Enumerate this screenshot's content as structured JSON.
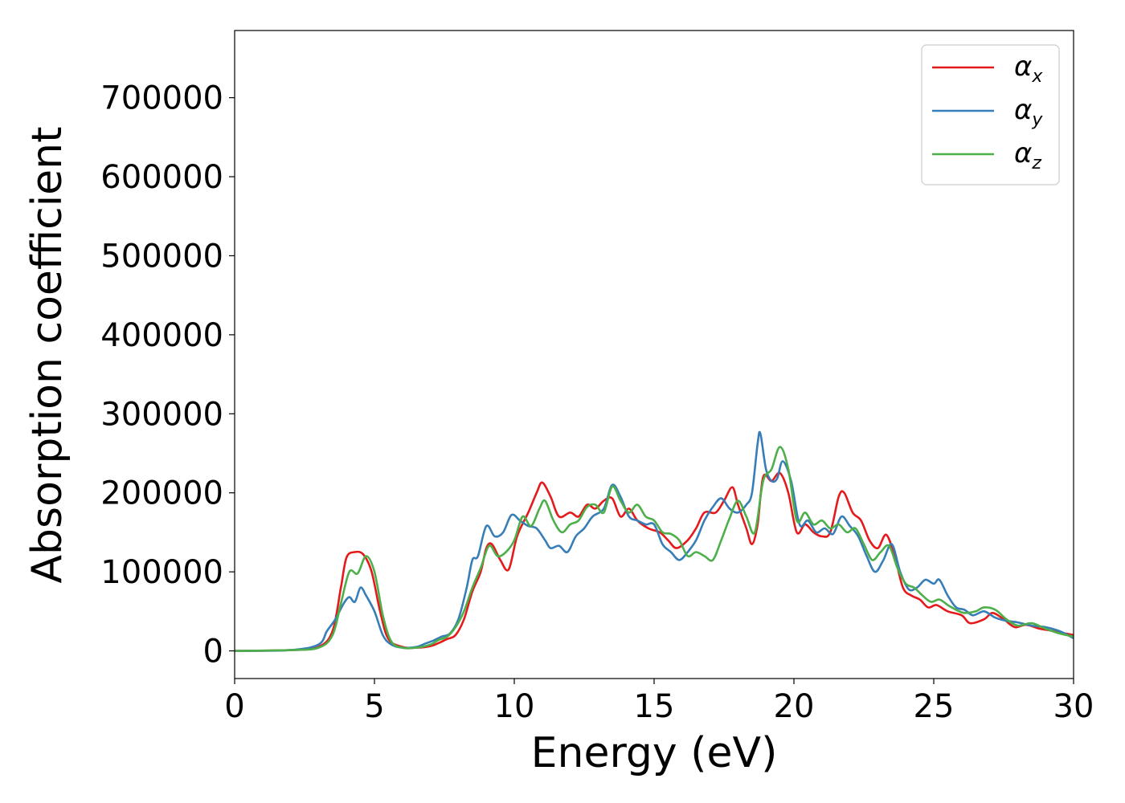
{
  "chart_data": {
    "type": "line",
    "xlabel": "Energy (eV)",
    "ylabel": "Absorption coefficient",
    "xlim": [
      0,
      30
    ],
    "ylim": [
      -35000,
      785000
    ],
    "xticks": [
      0,
      5,
      10,
      15,
      20,
      25,
      30
    ],
    "xtick_labels": [
      "0",
      "5",
      "10",
      "15",
      "20",
      "25",
      "30"
    ],
    "yticks": [
      0,
      100000,
      200000,
      300000,
      400000,
      500000,
      600000,
      700000
    ],
    "ytick_labels": [
      "0",
      "100000",
      "200000",
      "300000",
      "400000",
      "500000",
      "600000",
      "700000"
    ],
    "grid": false,
    "legend_position": "top-right",
    "series": [
      {
        "name": "α",
        "subscript": "x",
        "color": "#e41a1c",
        "points": [
          [
            0,
            0
          ],
          [
            2,
            1000
          ],
          [
            3,
            5000
          ],
          [
            3.5,
            25000
          ],
          [
            3.8,
            80000
          ],
          [
            4.0,
            118000
          ],
          [
            4.3,
            125000
          ],
          [
            4.6,
            122000
          ],
          [
            4.9,
            100000
          ],
          [
            5.2,
            50000
          ],
          [
            5.5,
            15000
          ],
          [
            6.0,
            5000
          ],
          [
            6.5,
            4000
          ],
          [
            7.0,
            6000
          ],
          [
            7.3,
            10000
          ],
          [
            7.6,
            15000
          ],
          [
            7.9,
            20000
          ],
          [
            8.2,
            40000
          ],
          [
            8.5,
            75000
          ],
          [
            8.8,
            100000
          ],
          [
            9.0,
            130000
          ],
          [
            9.2,
            135000
          ],
          [
            9.5,
            115000
          ],
          [
            9.8,
            103000
          ],
          [
            10.1,
            145000
          ],
          [
            10.5,
            175000
          ],
          [
            10.8,
            200000
          ],
          [
            11.0,
            213000
          ],
          [
            11.3,
            195000
          ],
          [
            11.6,
            170000
          ],
          [
            12.0,
            175000
          ],
          [
            12.3,
            170000
          ],
          [
            12.6,
            185000
          ],
          [
            12.9,
            180000
          ],
          [
            13.2,
            190000
          ],
          [
            13.5,
            193000
          ],
          [
            13.8,
            170000
          ],
          [
            14.1,
            180000
          ],
          [
            14.4,
            165000
          ],
          [
            14.8,
            155000
          ],
          [
            15.2,
            150000
          ],
          [
            15.5,
            140000
          ],
          [
            15.8,
            130000
          ],
          [
            16.2,
            140000
          ],
          [
            16.5,
            155000
          ],
          [
            16.8,
            175000
          ],
          [
            17.2,
            175000
          ],
          [
            17.5,
            190000
          ],
          [
            17.8,
            207000
          ],
          [
            18.0,
            185000
          ],
          [
            18.3,
            155000
          ],
          [
            18.5,
            135000
          ],
          [
            18.7,
            160000
          ],
          [
            18.9,
            220000
          ],
          [
            19.2,
            215000
          ],
          [
            19.5,
            225000
          ],
          [
            19.8,
            200000
          ],
          [
            20.1,
            150000
          ],
          [
            20.4,
            160000
          ],
          [
            20.7,
            150000
          ],
          [
            21.0,
            145000
          ],
          [
            21.3,
            150000
          ],
          [
            21.6,
            195000
          ],
          [
            21.8,
            200000
          ],
          [
            22.1,
            175000
          ],
          [
            22.4,
            165000
          ],
          [
            22.7,
            140000
          ],
          [
            23.0,
            130000
          ],
          [
            23.3,
            147000
          ],
          [
            23.6,
            120000
          ],
          [
            23.9,
            80000
          ],
          [
            24.2,
            70000
          ],
          [
            24.5,
            65000
          ],
          [
            24.8,
            55000
          ],
          [
            25.1,
            58000
          ],
          [
            25.5,
            50000
          ],
          [
            26.0,
            45000
          ],
          [
            26.3,
            35000
          ],
          [
            26.8,
            40000
          ],
          [
            27.1,
            48000
          ],
          [
            27.5,
            40000
          ],
          [
            27.9,
            30000
          ],
          [
            28.3,
            33000
          ],
          [
            28.8,
            28000
          ],
          [
            29.3,
            25000
          ],
          [
            30.0,
            20000
          ]
        ]
      },
      {
        "name": "α",
        "subscript": "y",
        "color": "#377eb8",
        "points": [
          [
            0,
            0
          ],
          [
            2,
            1000
          ],
          [
            3,
            8000
          ],
          [
            3.3,
            25000
          ],
          [
            3.6,
            40000
          ],
          [
            3.9,
            60000
          ],
          [
            4.1,
            68000
          ],
          [
            4.3,
            62000
          ],
          [
            4.5,
            80000
          ],
          [
            4.7,
            70000
          ],
          [
            5.0,
            50000
          ],
          [
            5.3,
            20000
          ],
          [
            5.6,
            8000
          ],
          [
            6.0,
            4000
          ],
          [
            6.5,
            5000
          ],
          [
            6.8,
            9000
          ],
          [
            7.1,
            13000
          ],
          [
            7.4,
            18000
          ],
          [
            7.7,
            22000
          ],
          [
            8.0,
            40000
          ],
          [
            8.3,
            80000
          ],
          [
            8.5,
            115000
          ],
          [
            8.7,
            120000
          ],
          [
            9.0,
            158000
          ],
          [
            9.3,
            145000
          ],
          [
            9.6,
            150000
          ],
          [
            9.9,
            172000
          ],
          [
            10.2,
            165000
          ],
          [
            10.5,
            158000
          ],
          [
            10.8,
            155000
          ],
          [
            11.1,
            140000
          ],
          [
            11.3,
            130000
          ],
          [
            11.6,
            133000
          ],
          [
            11.9,
            125000
          ],
          [
            12.2,
            145000
          ],
          [
            12.5,
            155000
          ],
          [
            12.8,
            170000
          ],
          [
            13.2,
            180000
          ],
          [
            13.5,
            210000
          ],
          [
            13.8,
            195000
          ],
          [
            14.1,
            170000
          ],
          [
            14.4,
            165000
          ],
          [
            14.7,
            160000
          ],
          [
            15.0,
            160000
          ],
          [
            15.3,
            135000
          ],
          [
            15.6,
            125000
          ],
          [
            15.9,
            115000
          ],
          [
            16.2,
            125000
          ],
          [
            16.5,
            140000
          ],
          [
            16.8,
            165000
          ],
          [
            17.1,
            182000
          ],
          [
            17.4,
            193000
          ],
          [
            17.7,
            180000
          ],
          [
            18.0,
            175000
          ],
          [
            18.3,
            185000
          ],
          [
            18.5,
            200000
          ],
          [
            18.7,
            262000
          ],
          [
            18.8,
            275000
          ],
          [
            19.0,
            230000
          ],
          [
            19.2,
            215000
          ],
          [
            19.4,
            218000
          ],
          [
            19.6,
            240000
          ],
          [
            19.9,
            215000
          ],
          [
            20.2,
            160000
          ],
          [
            20.5,
            165000
          ],
          [
            20.8,
            150000
          ],
          [
            21.1,
            155000
          ],
          [
            21.4,
            148000
          ],
          [
            21.7,
            170000
          ],
          [
            22.0,
            158000
          ],
          [
            22.3,
            145000
          ],
          [
            22.6,
            120000
          ],
          [
            22.9,
            100000
          ],
          [
            23.2,
            115000
          ],
          [
            23.5,
            135000
          ],
          [
            23.8,
            100000
          ],
          [
            24.1,
            78000
          ],
          [
            24.4,
            80000
          ],
          [
            24.7,
            90000
          ],
          [
            25.0,
            85000
          ],
          [
            25.2,
            90000
          ],
          [
            25.5,
            70000
          ],
          [
            25.8,
            55000
          ],
          [
            26.1,
            52000
          ],
          [
            26.4,
            45000
          ],
          [
            26.8,
            50000
          ],
          [
            27.2,
            42000
          ],
          [
            27.6,
            38000
          ],
          [
            28.0,
            36000
          ],
          [
            28.5,
            32000
          ],
          [
            29.0,
            30000
          ],
          [
            29.5,
            25000
          ],
          [
            30.0,
            16000
          ]
        ]
      },
      {
        "name": "α",
        "subscript": "z",
        "color": "#4daf4a",
        "points": [
          [
            0,
            0
          ],
          [
            2,
            1000
          ],
          [
            3,
            4000
          ],
          [
            3.5,
            20000
          ],
          [
            3.8,
            60000
          ],
          [
            4.1,
            100000
          ],
          [
            4.4,
            98000
          ],
          [
            4.7,
            120000
          ],
          [
            5.0,
            100000
          ],
          [
            5.3,
            45000
          ],
          [
            5.6,
            12000
          ],
          [
            6.0,
            4000
          ],
          [
            6.5,
            4000
          ],
          [
            7.0,
            8000
          ],
          [
            7.3,
            14000
          ],
          [
            7.6,
            18000
          ],
          [
            7.9,
            30000
          ],
          [
            8.2,
            50000
          ],
          [
            8.5,
            80000
          ],
          [
            8.8,
            105000
          ],
          [
            9.1,
            133000
          ],
          [
            9.4,
            120000
          ],
          [
            9.7,
            125000
          ],
          [
            10.0,
            140000
          ],
          [
            10.3,
            170000
          ],
          [
            10.6,
            158000
          ],
          [
            10.9,
            180000
          ],
          [
            11.1,
            190000
          ],
          [
            11.4,
            165000
          ],
          [
            11.7,
            150000
          ],
          [
            12.0,
            160000
          ],
          [
            12.3,
            165000
          ],
          [
            12.6,
            182000
          ],
          [
            12.9,
            185000
          ],
          [
            13.2,
            175000
          ],
          [
            13.5,
            208000
          ],
          [
            13.8,
            190000
          ],
          [
            14.1,
            175000
          ],
          [
            14.4,
            185000
          ],
          [
            14.7,
            170000
          ],
          [
            15.0,
            165000
          ],
          [
            15.3,
            150000
          ],
          [
            15.6,
            148000
          ],
          [
            15.9,
            140000
          ],
          [
            16.2,
            120000
          ],
          [
            16.5,
            125000
          ],
          [
            16.8,
            120000
          ],
          [
            17.1,
            115000
          ],
          [
            17.4,
            140000
          ],
          [
            17.7,
            168000
          ],
          [
            18.0,
            190000
          ],
          [
            18.3,
            170000
          ],
          [
            18.6,
            150000
          ],
          [
            18.9,
            215000
          ],
          [
            19.2,
            230000
          ],
          [
            19.5,
            258000
          ],
          [
            19.8,
            230000
          ],
          [
            20.1,
            165000
          ],
          [
            20.4,
            175000
          ],
          [
            20.7,
            160000
          ],
          [
            21.0,
            165000
          ],
          [
            21.3,
            155000
          ],
          [
            21.6,
            160000
          ],
          [
            21.9,
            150000
          ],
          [
            22.2,
            155000
          ],
          [
            22.5,
            135000
          ],
          [
            22.8,
            115000
          ],
          [
            23.1,
            125000
          ],
          [
            23.4,
            133000
          ],
          [
            23.7,
            105000
          ],
          [
            24.0,
            85000
          ],
          [
            24.3,
            80000
          ],
          [
            24.6,
            70000
          ],
          [
            24.9,
            62000
          ],
          [
            25.2,
            65000
          ],
          [
            25.5,
            58000
          ],
          [
            25.8,
            52000
          ],
          [
            26.1,
            48000
          ],
          [
            26.5,
            50000
          ],
          [
            26.8,
            55000
          ],
          [
            27.2,
            52000
          ],
          [
            27.6,
            40000
          ],
          [
            28.0,
            32000
          ],
          [
            28.5,
            35000
          ],
          [
            29.0,
            28000
          ],
          [
            29.5,
            22000
          ],
          [
            30.0,
            18000
          ]
        ]
      }
    ]
  }
}
